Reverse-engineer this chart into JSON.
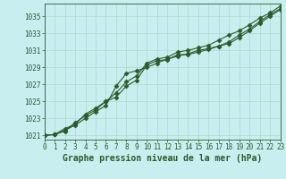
{
  "title": "Graphe pression niveau de la mer (hPa)",
  "bg_color": "#c8eef0",
  "grid_color": "#b0d8cc",
  "line_color": "#2a5c2a",
  "xlim": [
    0,
    23
  ],
  "ylim": [
    1020.5,
    1036.5
  ],
  "xticks": [
    0,
    1,
    2,
    3,
    4,
    5,
    6,
    7,
    8,
    9,
    10,
    11,
    12,
    13,
    14,
    15,
    16,
    17,
    18,
    19,
    20,
    21,
    22,
    23
  ],
  "yticks": [
    1021,
    1023,
    1025,
    1027,
    1029,
    1031,
    1033,
    1035
  ],
  "series": [
    [
      1021.0,
      1021.1,
      1021.6,
      1022.2,
      1023.0,
      1023.8,
      1024.5,
      1026.8,
      1028.3,
      1028.6,
      1029.0,
      1029.5,
      1030.0,
      1030.3,
      1030.6,
      1031.0,
      1031.2,
      1031.5,
      1032.0,
      1032.8,
      1033.5,
      1034.4,
      1035.2,
      1035.9
    ],
    [
      1021.0,
      1021.1,
      1021.5,
      1022.5,
      1023.3,
      1024.0,
      1025.0,
      1025.5,
      1026.8,
      1027.5,
      1029.3,
      1029.8,
      1029.9,
      1030.5,
      1030.5,
      1030.8,
      1031.1,
      1031.5,
      1031.8,
      1032.5,
      1033.3,
      1034.2,
      1035.0,
      1035.8
    ],
    [
      1021.0,
      1021.1,
      1021.8,
      1022.3,
      1023.5,
      1024.2,
      1025.0,
      1026.0,
      1027.3,
      1028.0,
      1029.5,
      1030.0,
      1030.2,
      1030.8,
      1031.0,
      1031.3,
      1031.6,
      1032.2,
      1032.8,
      1033.3,
      1034.0,
      1034.8,
      1035.4,
      1036.2
    ]
  ],
  "marker": "D",
  "marker_size": 2.5,
  "line_width": 0.8,
  "xlabel_fontsize": 7,
  "tick_fontsize": 5.5
}
